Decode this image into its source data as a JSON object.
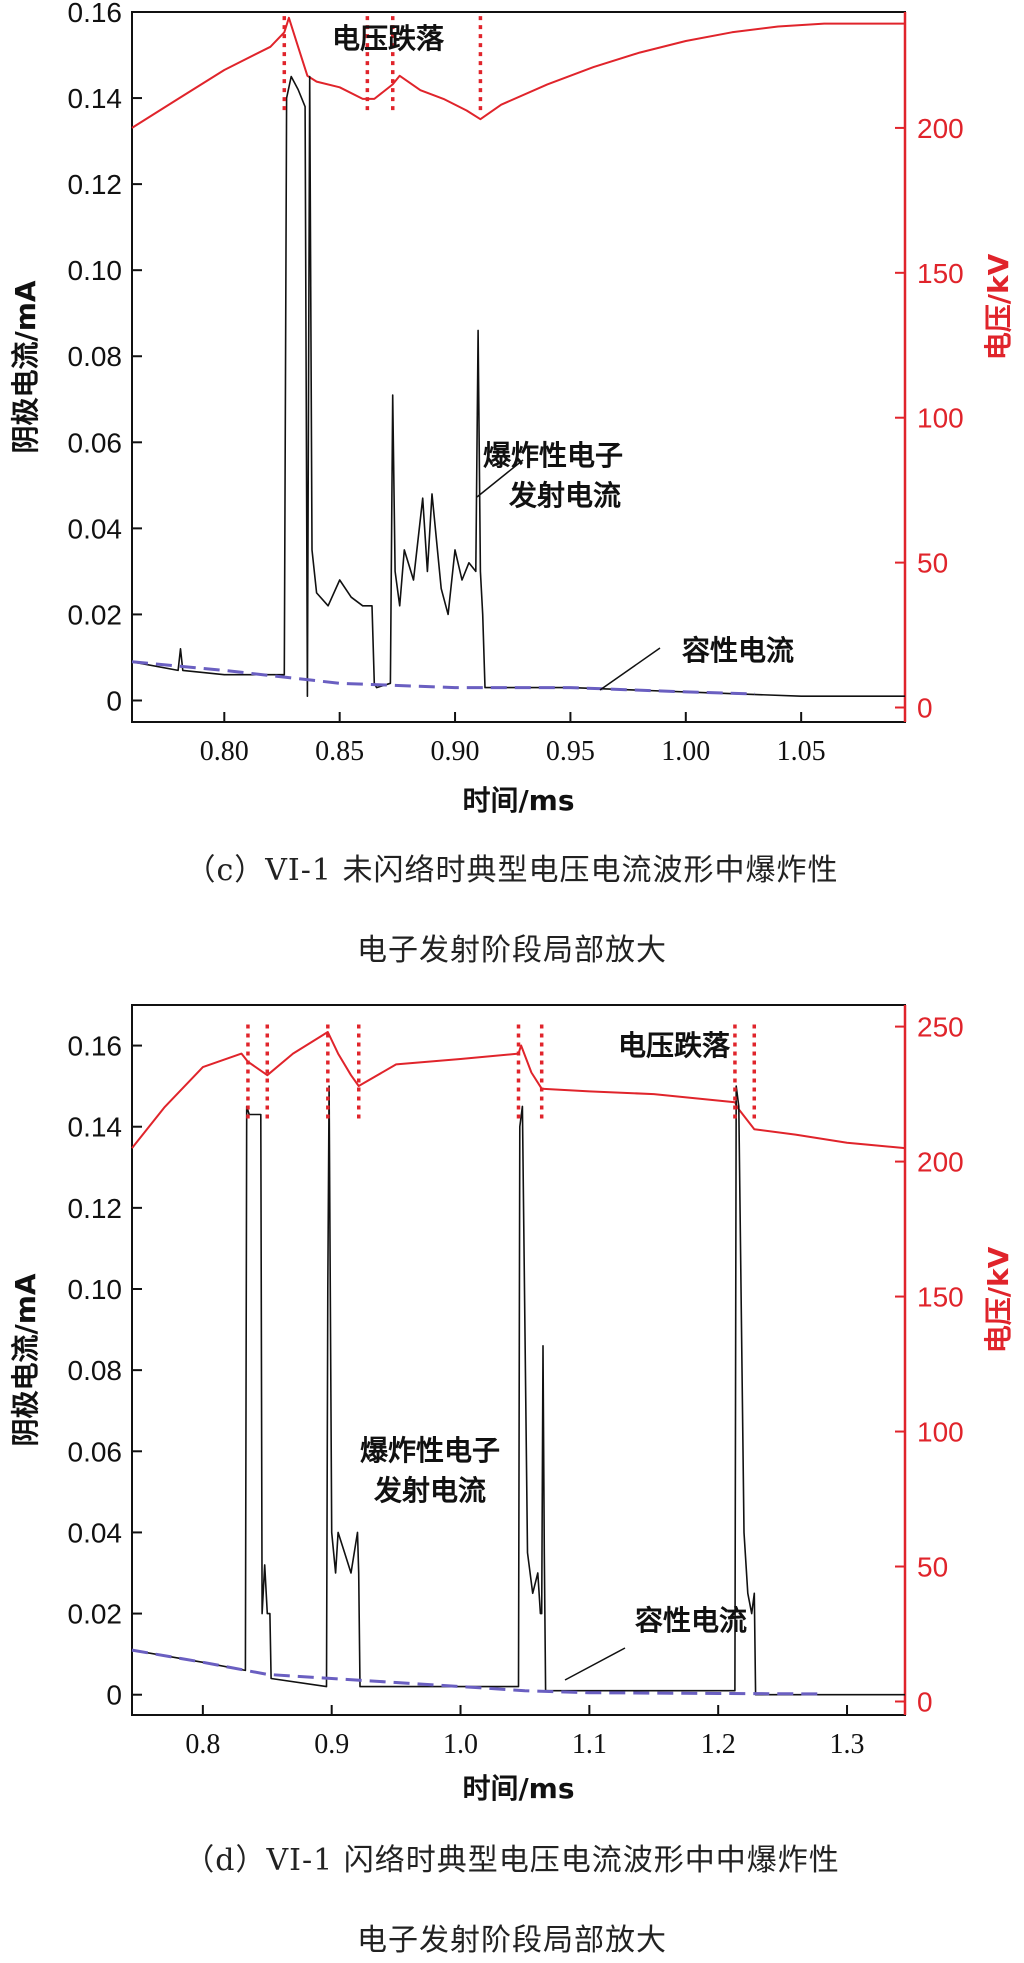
{
  "colors": {
    "current": "#111111",
    "voltage": "#e0242b",
    "capacitive": "#6a5fc1",
    "axis_left": "#111111",
    "axis_right": "#e0242b"
  },
  "panels": {
    "c": {
      "caption_line1": "（c）VI-1 未闪络时典型电压电流波形中爆炸性",
      "caption_line2": "电子发射阶段局部放大"
    },
    "d": {
      "caption_line1": "（d）VI-1 闪络时典型电压电流波形中中爆炸性",
      "caption_line2": "电子发射阶段局部放大"
    }
  },
  "chart_data": [
    {
      "type": "line",
      "id": "c",
      "xlabel": "时间/ms",
      "ylabel": "阴极电流/mA",
      "ylabel_right": "电压/kV",
      "xlim": [
        0.76,
        1.095
      ],
      "ylim": [
        -0.005,
        0.16
      ],
      "ylim_right": [
        -5,
        240
      ],
      "xticks": [
        "0.80",
        "0.85",
        "0.90",
        "0.95",
        "1.00",
        "1.05"
      ],
      "xtick_values": [
        0.8,
        0.85,
        0.9,
        0.95,
        1.0,
        1.05
      ],
      "yticks": [
        "0",
        "0.02",
        "0.04",
        "0.06",
        "0.08",
        "0.10",
        "0.12",
        "0.14",
        "0.16"
      ],
      "ytick_values": [
        0,
        0.02,
        0.04,
        0.06,
        0.08,
        0.1,
        0.12,
        0.14,
        0.16
      ],
      "yticks_right": [
        "0",
        "50",
        "100",
        "150",
        "200"
      ],
      "ytick_right_values": [
        0,
        50,
        100,
        150,
        200
      ],
      "annotations": {
        "voltage_drop": "电压跌落",
        "explosive_line1": "爆炸性电子",
        "explosive_line2": "发射电流",
        "capacitive": "容性电流"
      },
      "voltage_drop_markers": [
        0.826,
        0.862,
        0.873,
        0.911
      ],
      "series": [
        {
          "kind": "voltage",
          "x": [
            0.76,
            0.78,
            0.8,
            0.82,
            0.826,
            0.828,
            0.832,
            0.836,
            0.84,
            0.85,
            0.86,
            0.865,
            0.873,
            0.876,
            0.885,
            0.895,
            0.905,
            0.911,
            0.92,
            0.94,
            0.96,
            0.98,
            1.0,
            1.02,
            1.04,
            1.06,
            1.08,
            1.095
          ],
          "y": [
            200,
            210,
            220,
            228,
            233,
            238,
            228,
            218,
            216,
            214,
            210,
            210,
            215,
            218,
            213,
            210,
            206,
            203,
            208,
            215,
            221,
            226,
            230,
            233,
            235,
            236,
            236,
            236
          ]
        },
        {
          "kind": "current",
          "x": [
            0.76,
            0.78,
            0.781,
            0.782,
            0.8,
            0.826,
            0.827,
            0.829,
            0.832,
            0.835,
            0.836,
            0.837,
            0.838,
            0.84,
            0.845,
            0.85,
            0.855,
            0.86,
            0.864,
            0.865,
            0.866,
            0.872,
            0.873,
            0.874,
            0.876,
            0.878,
            0.882,
            0.886,
            0.888,
            0.89,
            0.894,
            0.897,
            0.9,
            0.903,
            0.906,
            0.909,
            0.91,
            0.911,
            0.912,
            0.913,
            0.95,
            1.0,
            1.05,
            1.095
          ],
          "y": [
            0.009,
            0.007,
            0.012,
            0.007,
            0.006,
            0.006,
            0.14,
            0.145,
            0.142,
            0.138,
            0.001,
            0.145,
            0.035,
            0.025,
            0.022,
            0.028,
            0.024,
            0.022,
            0.022,
            0.004,
            0.003,
            0.004,
            0.071,
            0.03,
            0.022,
            0.035,
            0.028,
            0.047,
            0.03,
            0.048,
            0.026,
            0.02,
            0.035,
            0.028,
            0.032,
            0.03,
            0.086,
            0.03,
            0.02,
            0.003,
            0.003,
            0.002,
            0.001,
            0.001
          ]
        },
        {
          "kind": "capacitive",
          "x": [
            0.76,
            0.8,
            0.85,
            0.9,
            0.95,
            1.0,
            1.03
          ],
          "y": [
            0.009,
            0.007,
            0.004,
            0.003,
            0.003,
            0.002,
            0.0015
          ]
        }
      ]
    },
    {
      "type": "line",
      "id": "d",
      "xlabel": "时间/ms",
      "ylabel": "阴极电流/mA",
      "ylabel_right": "电压/kV",
      "xlim": [
        0.745,
        1.345
      ],
      "ylim": [
        -0.005,
        0.17
      ],
      "ylim_right": [
        -5,
        258
      ],
      "xticks": [
        "0.8",
        "0.9",
        "1.0",
        "1.1",
        "1.2",
        "1.3"
      ],
      "xtick_values": [
        0.8,
        0.9,
        1.0,
        1.1,
        1.2,
        1.3
      ],
      "yticks": [
        "0",
        "0.02",
        "0.04",
        "0.06",
        "0.08",
        "0.10",
        "0.12",
        "0.14",
        "0.16"
      ],
      "ytick_values": [
        0,
        0.02,
        0.04,
        0.06,
        0.08,
        0.1,
        0.12,
        0.14,
        0.16
      ],
      "yticks_right": [
        "0",
        "50",
        "100",
        "150",
        "200",
        "250"
      ],
      "ytick_right_values": [
        0,
        50,
        100,
        150,
        200,
        250
      ],
      "annotations": {
        "voltage_drop": "电压跌落",
        "explosive_line1": "爆炸性电子",
        "explosive_line2": "发射电流",
        "capacitive": "容性电流"
      },
      "voltage_drop_markers": [
        0.835,
        0.85,
        0.897,
        0.921,
        1.045,
        1.063,
        1.213,
        1.228
      ],
      "series": [
        {
          "kind": "voltage",
          "x": [
            0.745,
            0.77,
            0.8,
            0.83,
            0.835,
            0.85,
            0.87,
            0.897,
            0.905,
            0.915,
            0.921,
            0.95,
            1.0,
            1.045,
            1.047,
            1.055,
            1.063,
            1.1,
            1.15,
            1.213,
            1.215,
            1.228,
            1.26,
            1.3,
            1.345
          ],
          "y": [
            205,
            220,
            235,
            240,
            237,
            232,
            240,
            248,
            240,
            232,
            228,
            236,
            238,
            240,
            243,
            233,
            227,
            226,
            225,
            222,
            220,
            212,
            210,
            207,
            205
          ]
        },
        {
          "kind": "current",
          "x": [
            0.745,
            0.8,
            0.833,
            0.834,
            0.836,
            0.845,
            0.846,
            0.848,
            0.85,
            0.852,
            0.853,
            0.896,
            0.897,
            0.898,
            0.9,
            0.903,
            0.905,
            0.91,
            0.915,
            0.92,
            0.921,
            0.922,
            1.045,
            1.046,
            1.048,
            1.052,
            1.056,
            1.06,
            1.062,
            1.063,
            1.064,
            1.065,
            1.066,
            1.213,
            1.214,
            1.216,
            1.22,
            1.223,
            1.226,
            1.228,
            1.229,
            1.3,
            1.345
          ],
          "y": [
            0.011,
            0.008,
            0.006,
            0.145,
            0.143,
            0.143,
            0.02,
            0.032,
            0.02,
            0.02,
            0.004,
            0.002,
            0.1,
            0.15,
            0.04,
            0.03,
            0.04,
            0.035,
            0.03,
            0.04,
            0.03,
            0.002,
            0.002,
            0.14,
            0.145,
            0.035,
            0.025,
            0.03,
            0.02,
            0.02,
            0.086,
            0.035,
            0.001,
            0.001,
            0.15,
            0.145,
            0.04,
            0.025,
            0.02,
            0.025,
            0.0,
            0.0,
            0.0
          ]
        },
        {
          "kind": "capacitive",
          "x": [
            0.745,
            0.8,
            0.85,
            0.9,
            0.95,
            1.0,
            1.05,
            1.1,
            1.2,
            1.28
          ],
          "y": [
            0.011,
            0.008,
            0.005,
            0.004,
            0.003,
            0.002,
            0.001,
            0.0005,
            0.0003,
            0.0002
          ]
        }
      ]
    }
  ]
}
